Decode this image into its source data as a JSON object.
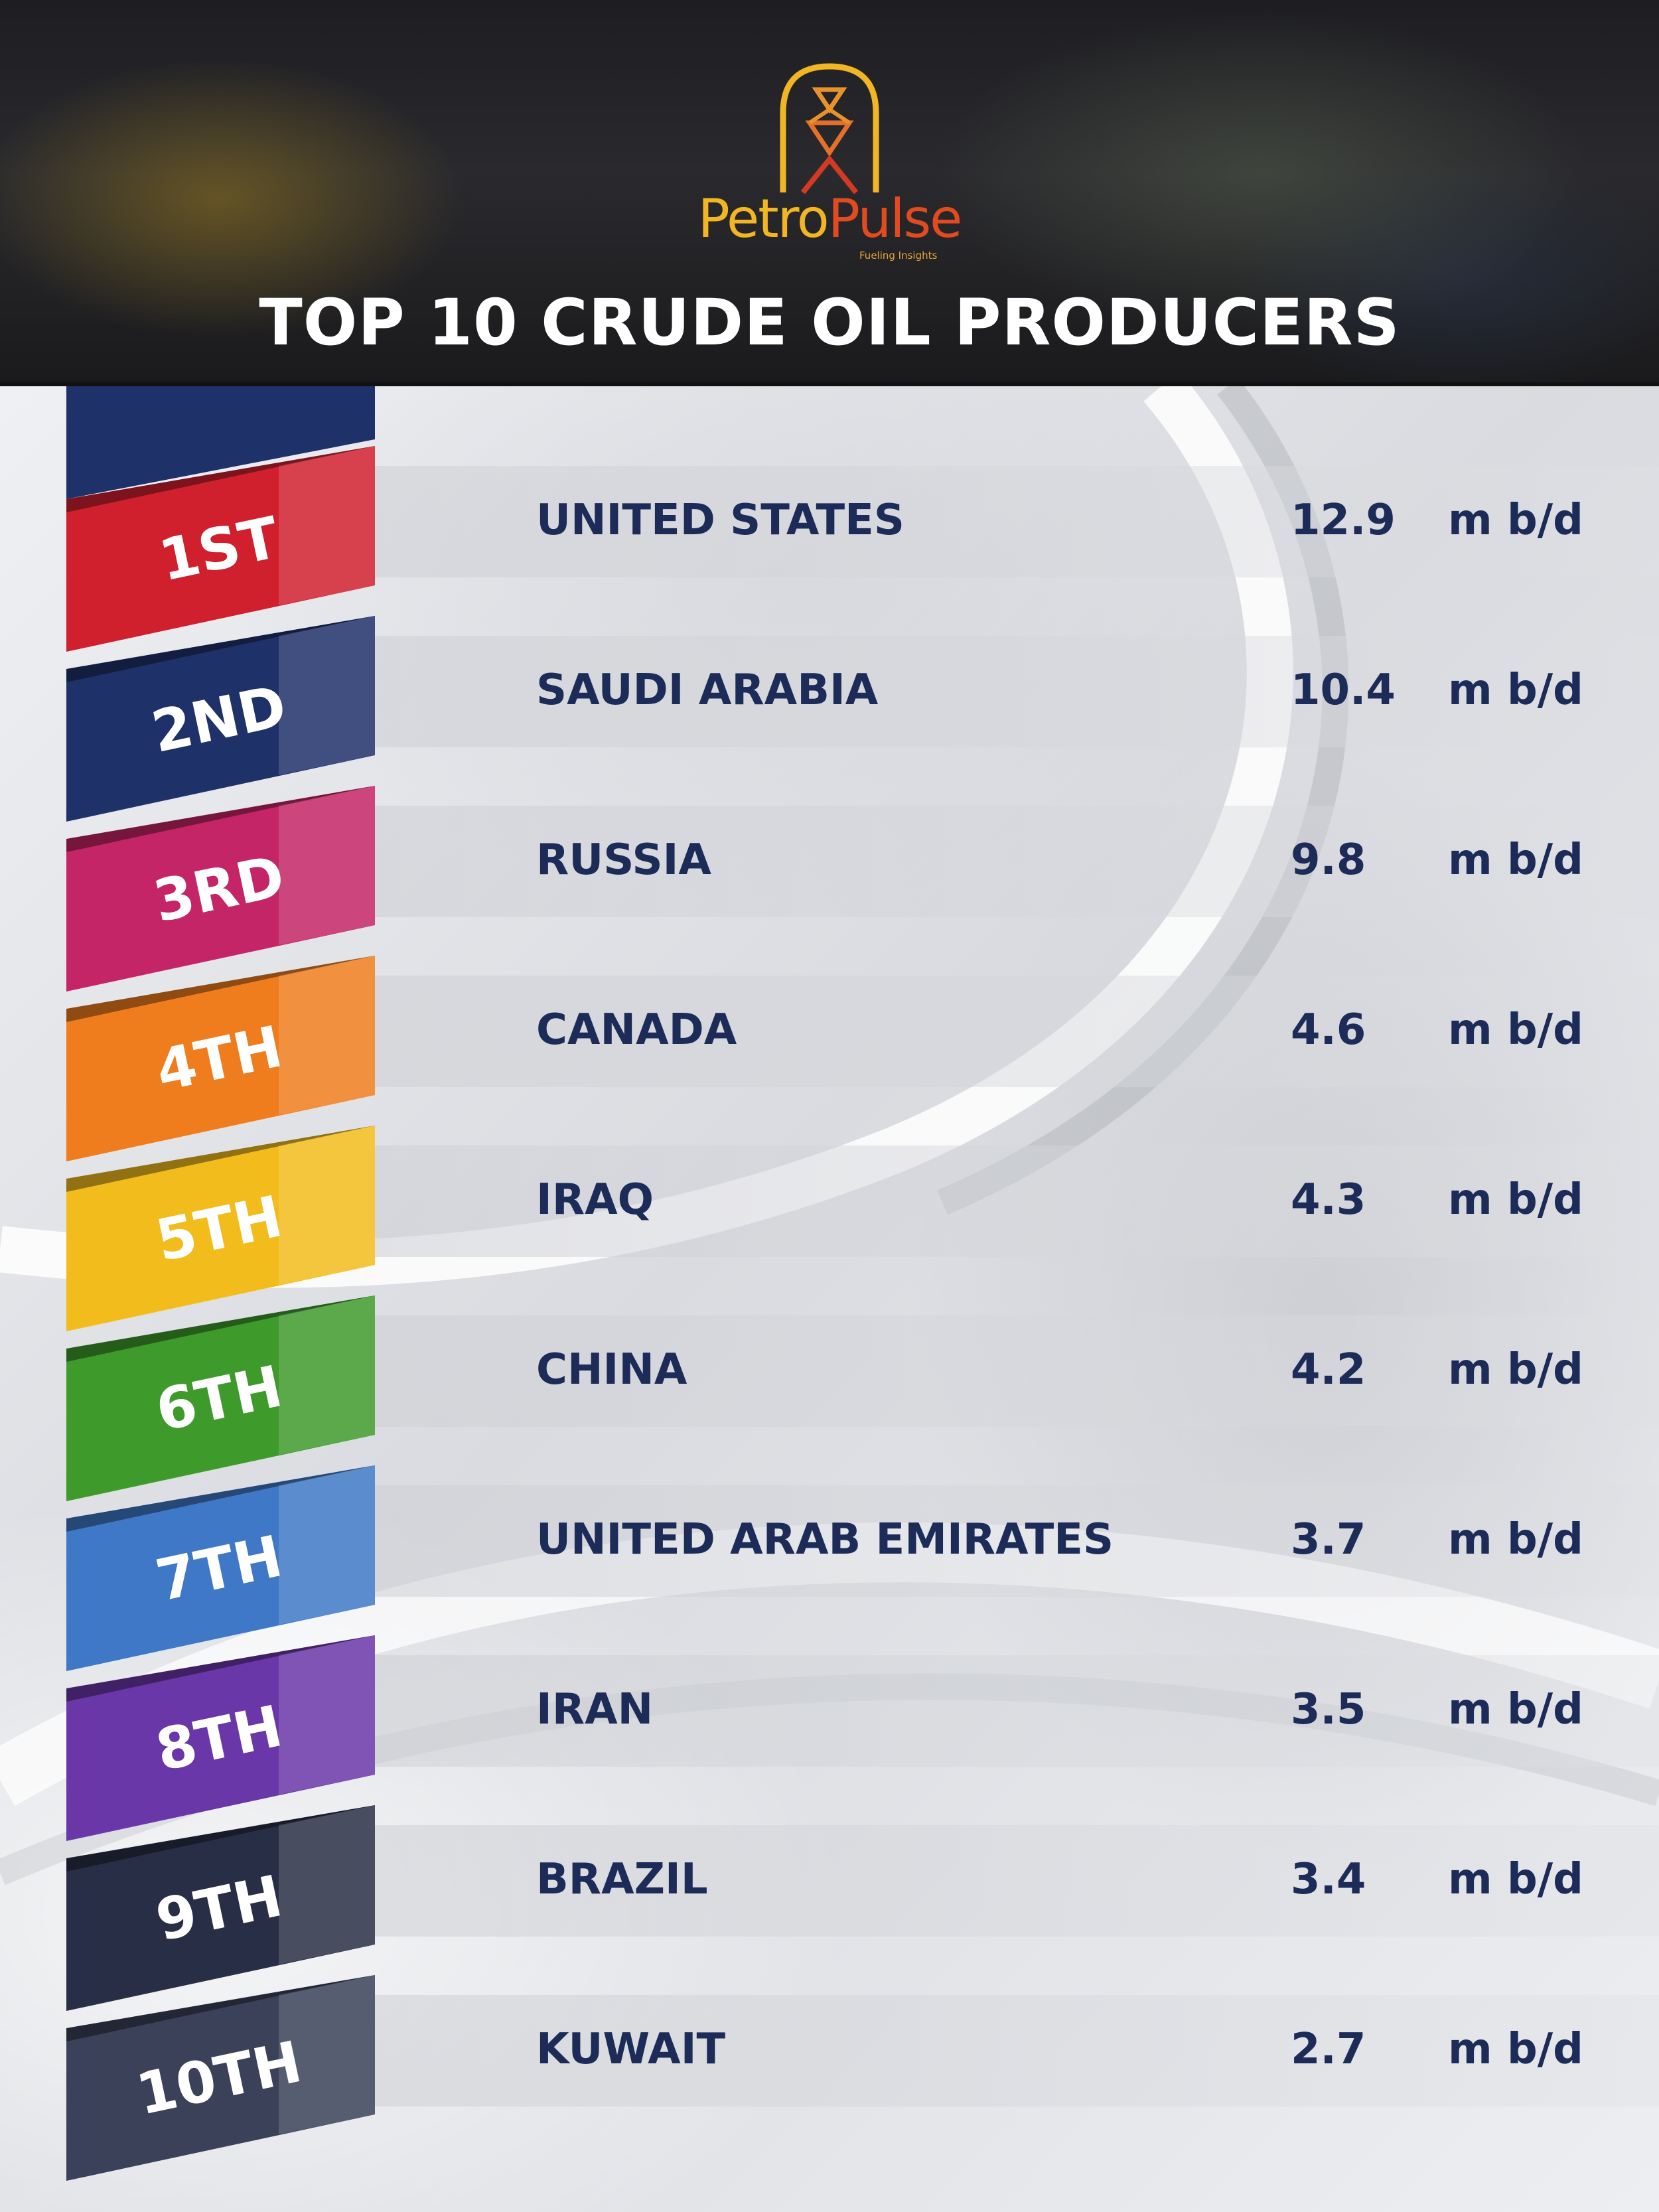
{
  "brand": {
    "name_part1": "Petro",
    "name_part2": "Pulse",
    "tagline": "Fueling Insights",
    "colors": {
      "gold": "#f2b523",
      "orange": "#e24b1f",
      "red": "#c41e2b"
    }
  },
  "title": "TOP 10 CRUDE OIL PRODUCERS",
  "producers": [
    {
      "rank": "1ST",
      "country": "UNITED STATES",
      "value": "12.9",
      "unit": "m b/d",
      "color": "#d0202e"
    },
    {
      "rank": "2ND",
      "country": "SAUDI ARABIA",
      "value": "10.4",
      "unit": "m b/d",
      "color": "#1f3169"
    },
    {
      "rank": "3RD",
      "country": "RUSSIA",
      "value": "9.8",
      "unit": "m b/d",
      "color": "#c42566"
    },
    {
      "rank": "4TH",
      "country": "CANADA",
      "value": "4.6",
      "unit": "m b/d",
      "color": "#ef7d1e"
    },
    {
      "rank": "5TH",
      "country": "IRAQ",
      "value": "4.3",
      "unit": "m b/d",
      "color": "#f2bd1c"
    },
    {
      "rank": "6TH",
      "country": "CHINA",
      "value": "4.2",
      "unit": "m b/d",
      "color": "#3f9a2c"
    },
    {
      "rank": "7TH",
      "country": "UNITED ARAB EMIRATES",
      "value": "3.7",
      "unit": "m b/d",
      "color": "#3f78c6"
    },
    {
      "rank": "8TH",
      "country": "IRAN",
      "value": "3.5",
      "unit": "m b/d",
      "color": "#6a37a8"
    },
    {
      "rank": "9TH",
      "country": "BRAZIL",
      "value": "3.4",
      "unit": "m b/d",
      "color": "#282e45"
    },
    {
      "rank": "10TH",
      "country": "KUWAIT",
      "value": "2.7",
      "unit": "m b/d",
      "color": "#3a4158"
    }
  ]
}
